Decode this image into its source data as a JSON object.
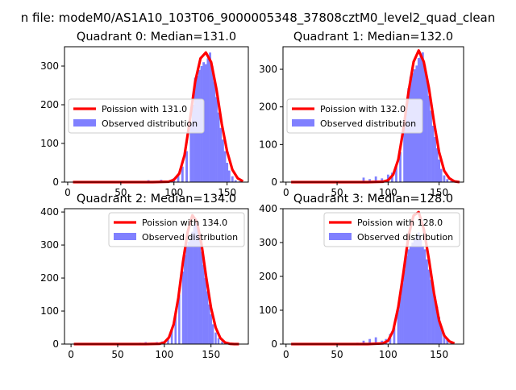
{
  "suptitle": "n file: modeM0/AS1A10_103T06_9000005348_37808cztM0_level2_quad_clean",
  "chart_data": [
    {
      "type": "bar",
      "title": "Quadrant 0: Median=131.0",
      "xlim": [
        -3,
        170
      ],
      "ylim": [
        0,
        350
      ],
      "xticks": [
        0,
        50,
        100,
        150
      ],
      "yticks": [
        0,
        100,
        200,
        300
      ],
      "legend_position": "center-left",
      "series": [
        {
          "name": "Poission with 131.0",
          "kind": "line",
          "color": "#ff0000",
          "x": [
            5,
            80,
            95,
            100,
            105,
            110,
            115,
            120,
            125,
            130,
            135,
            140,
            145,
            150,
            155,
            160,
            165
          ],
          "y": [
            0,
            0,
            1,
            6,
            22,
            70,
            160,
            260,
            320,
            335,
            310,
            240,
            150,
            80,
            32,
            10,
            2
          ]
        },
        {
          "name": "Observed distribution",
          "kind": "hist",
          "color": "#8080ff",
          "x": [
            70,
            76,
            82,
            88,
            94,
            100,
            104,
            108,
            112,
            116,
            118,
            120,
            122,
            124,
            126,
            128,
            130,
            132,
            134,
            136,
            138,
            140,
            142,
            144,
            146,
            148,
            150,
            152,
            155,
            158,
            162
          ],
          "y": [
            3,
            5,
            3,
            6,
            4,
            10,
            20,
            40,
            80,
            150,
            200,
            270,
            275,
            290,
            300,
            310,
            305,
            320,
            335,
            300,
            260,
            220,
            180,
            140,
            110,
            80,
            50,
            30,
            15,
            5,
            2
          ]
        }
      ]
    },
    {
      "type": "bar",
      "title": "Quadrant 1: Median=132.0",
      "xlim": [
        -3,
        174
      ],
      "ylim": [
        0,
        360
      ],
      "xticks": [
        0,
        50,
        100,
        150
      ],
      "yticks": [
        0,
        100,
        200,
        300
      ],
      "legend_position": "center-left",
      "series": [
        {
          "name": "Poission with 132.0",
          "kind": "line",
          "color": "#ff0000",
          "x": [
            5,
            80,
            95,
            100,
            105,
            110,
            115,
            120,
            125,
            130,
            135,
            140,
            145,
            150,
            155,
            160,
            165,
            170
          ],
          "y": [
            0,
            0,
            1,
            5,
            20,
            60,
            140,
            240,
            320,
            350,
            320,
            250,
            160,
            80,
            30,
            10,
            2,
            0
          ]
        },
        {
          "name": "Observed distribution",
          "kind": "hist",
          "color": "#8080ff",
          "x": [
            70,
            76,
            82,
            88,
            94,
            100,
            104,
            108,
            112,
            116,
            118,
            120,
            122,
            124,
            126,
            128,
            130,
            132,
            134,
            136,
            138,
            140,
            142,
            144,
            146,
            148,
            150,
            152,
            155,
            158,
            162
          ],
          "y": [
            3,
            12,
            8,
            15,
            10,
            20,
            25,
            45,
            80,
            150,
            200,
            250,
            280,
            290,
            300,
            310,
            330,
            340,
            345,
            310,
            270,
            230,
            190,
            150,
            120,
            90,
            60,
            35,
            18,
            8,
            3
          ]
        }
      ]
    },
    {
      "type": "bar",
      "title": "Quadrant 2: Median=134.0",
      "xlim": [
        -7,
        190
      ],
      "ylim": [
        0,
        410
      ],
      "xticks": [
        0,
        50,
        100,
        150
      ],
      "yticks": [
        0,
        100,
        200,
        300,
        400
      ],
      "legend_position": "top-right",
      "series": [
        {
          "name": "Poission with 134.0",
          "kind": "line",
          "color": "#ff0000",
          "x": [
            3,
            80,
            95,
            100,
            105,
            110,
            115,
            120,
            125,
            130,
            135,
            140,
            145,
            150,
            155,
            160,
            165,
            170,
            175,
            180
          ],
          "y": [
            0,
            0,
            1,
            5,
            20,
            60,
            140,
            250,
            340,
            390,
            370,
            300,
            200,
            110,
            50,
            18,
            5,
            1,
            0,
            0
          ]
        },
        {
          "name": "Observed distribution",
          "kind": "hist",
          "color": "#8080ff",
          "x": [
            74,
            80,
            86,
            92,
            98,
            104,
            108,
            112,
            116,
            120,
            122,
            124,
            126,
            128,
            130,
            132,
            134,
            136,
            138,
            140,
            142,
            144,
            146,
            148,
            150,
            152,
            155,
            158,
            162,
            168
          ],
          "y": [
            4,
            6,
            4,
            6,
            8,
            20,
            45,
            90,
            150,
            220,
            270,
            300,
            310,
            330,
            340,
            360,
            380,
            370,
            330,
            280,
            240,
            200,
            160,
            120,
            90,
            60,
            35,
            18,
            8,
            3
          ]
        }
      ]
    },
    {
      "type": "bar",
      "title": "Quadrant 3: Median=128.0",
      "xlim": [
        -3,
        174
      ],
      "ylim": [
        0,
        400
      ],
      "xticks": [
        0,
        50,
        100,
        150
      ],
      "yticks": [
        0,
        100,
        200,
        300,
        400
      ],
      "legend_position": "top-right",
      "series": [
        {
          "name": "Poission with 128.0",
          "kind": "line",
          "color": "#ff0000",
          "x": [
            5,
            80,
            95,
            100,
            105,
            110,
            115,
            120,
            125,
            130,
            135,
            140,
            145,
            150,
            155,
            160,
            165
          ],
          "y": [
            0,
            0,
            2,
            10,
            40,
            110,
            210,
            320,
            380,
            390,
            340,
            250,
            150,
            70,
            25,
            8,
            2
          ]
        },
        {
          "name": "Observed distribution",
          "kind": "hist",
          "color": "#8080ff",
          "x": [
            70,
            76,
            82,
            88,
            94,
            98,
            102,
            106,
            110,
            112,
            114,
            116,
            118,
            120,
            122,
            124,
            126,
            128,
            130,
            132,
            134,
            136,
            138,
            140,
            142,
            144,
            146,
            148,
            150,
            152,
            155,
            158,
            162
          ],
          "y": [
            4,
            10,
            15,
            20,
            10,
            15,
            30,
            55,
            100,
            140,
            180,
            220,
            260,
            280,
            290,
            300,
            310,
            320,
            330,
            310,
            290,
            280,
            250,
            220,
            190,
            170,
            140,
            110,
            80,
            50,
            30,
            12,
            4
          ]
        }
      ]
    }
  ]
}
